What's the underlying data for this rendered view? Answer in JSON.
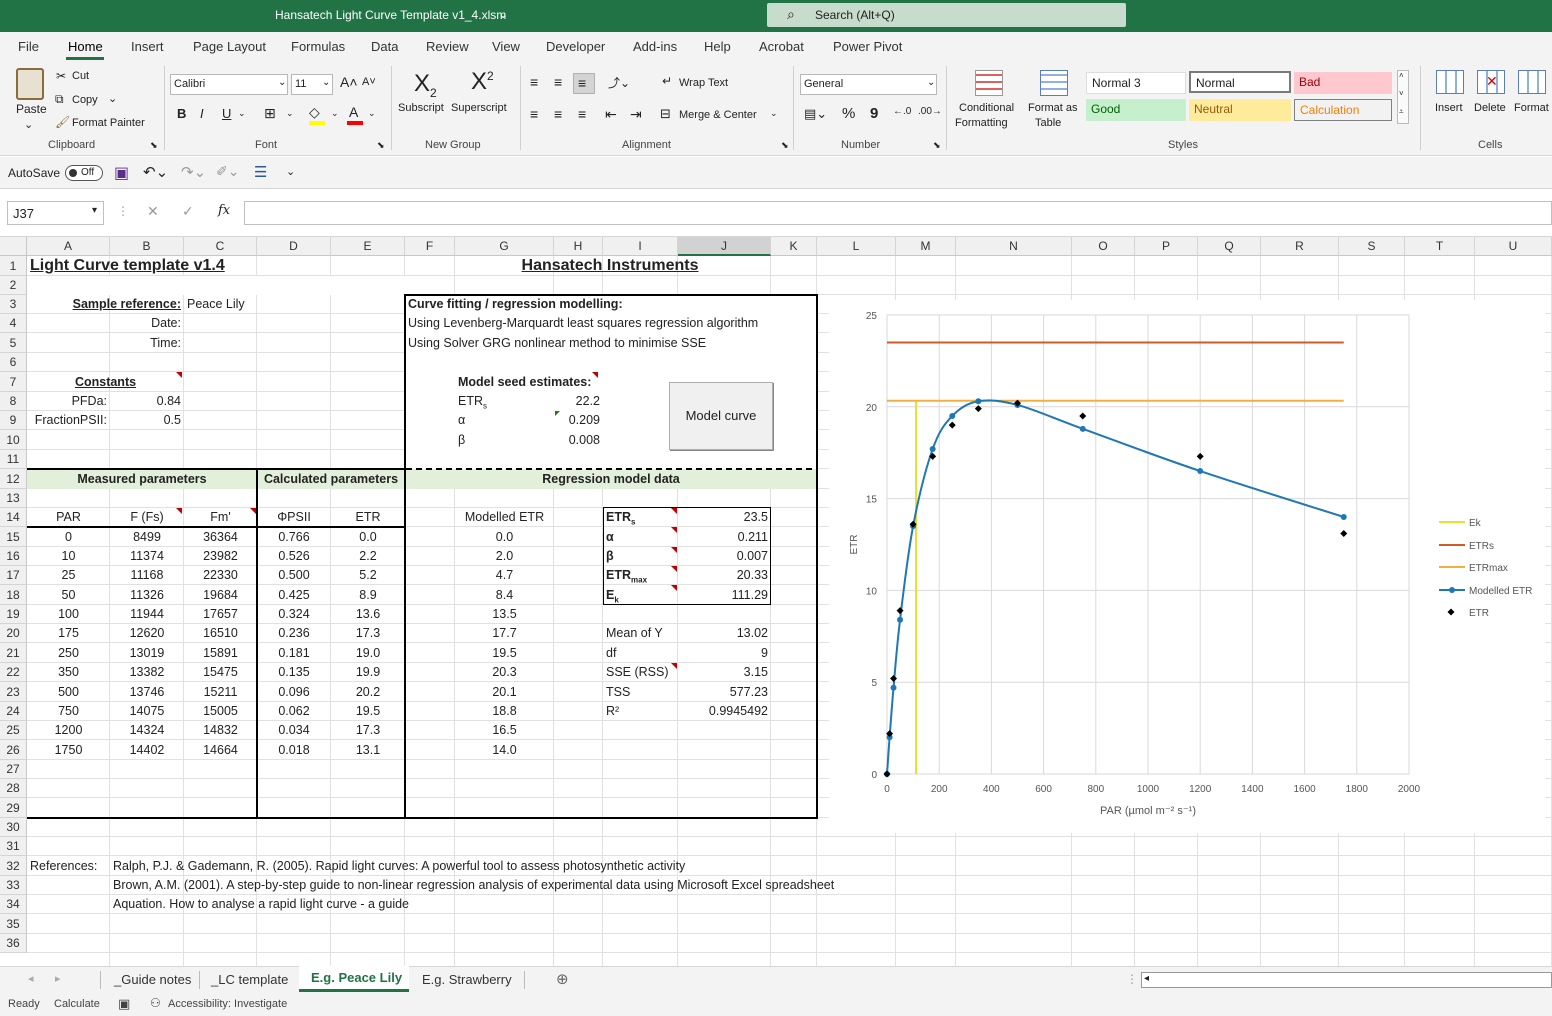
{
  "window": {
    "title": "Hansatech Light Curve Template v1_4.xlsm",
    "search_placeholder": "Search (Alt+Q)"
  },
  "menu": [
    "File",
    "Home",
    "Insert",
    "Page Layout",
    "Formulas",
    "Data",
    "Review",
    "View",
    "Developer",
    "Add-ins",
    "Help",
    "Acrobat",
    "Power Pivot"
  ],
  "ribbon": {
    "clipboard": {
      "paste": "Paste",
      "cut": "Cut",
      "copy": "Copy",
      "format_painter": "Format Painter",
      "label": "Clipboard"
    },
    "font": {
      "name": "Calibri",
      "size": "11",
      "bold": "B",
      "italic": "I",
      "underline": "U",
      "label": "Font",
      "fill_color": "#ffff00",
      "font_color": "#ff0000"
    },
    "new_group": {
      "subscript": "Subscript",
      "superscript": "Superscript",
      "label": "New Group"
    },
    "alignment": {
      "wrap": "Wrap Text",
      "merge": "Merge & Center",
      "label": "Alignment"
    },
    "number": {
      "format": "General",
      "percent": "%",
      "comma": "9",
      "label": "Number"
    },
    "styles": {
      "conditional": "Conditional",
      "conditional2": "Formatting",
      "format_table": "Format as",
      "format_table2": "Table",
      "normal3": "Normal 3",
      "normal": "Normal",
      "bad": "Bad",
      "good": "Good",
      "neutral": "Neutral",
      "calculation": "Calculation",
      "label": "Styles"
    },
    "cells": {
      "insert": "Insert",
      "delete": "Delete",
      "format": "Format",
      "label": "Cells"
    }
  },
  "qat": {
    "autosave": "AutoSave",
    "autosave_state": "Off"
  },
  "formula": {
    "name_box": "J37",
    "fx": "fx",
    "value": ""
  },
  "columns": [
    {
      "l": "A",
      "x": 27,
      "w": 83
    },
    {
      "l": "B",
      "x": 110,
      "w": 74
    },
    {
      "l": "C",
      "x": 184,
      "w": 73
    },
    {
      "l": "D",
      "x": 257,
      "w": 74
    },
    {
      "l": "E",
      "x": 331,
      "w": 74
    },
    {
      "l": "F",
      "x": 405,
      "w": 50
    },
    {
      "l": "G",
      "x": 455,
      "w": 99
    },
    {
      "l": "H",
      "x": 554,
      "w": 49
    },
    {
      "l": "I",
      "x": 603,
      "w": 75
    },
    {
      "l": "J",
      "x": 678,
      "w": 93
    },
    {
      "l": "K",
      "x": 771,
      "w": 46
    },
    {
      "l": "L",
      "x": 817,
      "w": 79
    },
    {
      "l": "M",
      "x": 896,
      "w": 60
    },
    {
      "l": "N",
      "x": 956,
      "w": 116
    },
    {
      "l": "O",
      "x": 1072,
      "w": 63
    },
    {
      "l": "P",
      "x": 1135,
      "w": 63
    },
    {
      "l": "Q",
      "x": 1198,
      "w": 63
    },
    {
      "l": "R",
      "x": 1261,
      "w": 78
    },
    {
      "l": "S",
      "x": 1339,
      "w": 66
    },
    {
      "l": "T",
      "x": 1405,
      "w": 70
    },
    {
      "l": "U",
      "x": 1475,
      "w": 77
    }
  ],
  "rows": [
    "1",
    "2",
    "3",
    "4",
    "5",
    "6",
    "7",
    "8",
    "9",
    "10",
    "11",
    "12",
    "13",
    "14",
    "15",
    "16",
    "17",
    "18",
    "19",
    "20",
    "21",
    "22",
    "23",
    "24",
    "25",
    "26",
    "27",
    "28",
    "29",
    "30",
    "31",
    "32",
    "33",
    "34",
    "35",
    "36"
  ],
  "sheet": {
    "title": "Light Curve template v1.4",
    "company": "Hansatech Instruments",
    "sample_ref_label": "Sample reference:",
    "sample_ref": "Peace Lily",
    "date_label": "Date:",
    "time_label": "Time:",
    "constants": "Constants",
    "pfda_label": "PFDa:",
    "pfda": "0.84",
    "fpsii_label": "FractionPSII:",
    "fpsii": "0.5",
    "curve_fit": "Curve fitting / regression modelling:",
    "curve_fit_1": "Using Levenberg-Marquardt least squares regression algorithm",
    "curve_fit_2": "Using Solver GRG nonlinear method to minimise SSE",
    "seed": "Model seed estimates:",
    "seed_etr_label": "ETR",
    "seed_etr_sub": "s",
    "seed_etr": "22.2",
    "seed_alpha_label": "α",
    "seed_alpha": "0.209",
    "seed_beta_label": "β",
    "seed_beta": "0.008",
    "model_button": "Model curve",
    "measured": "Measured parameters",
    "calculated": "Calculated parameters",
    "regression": "Regression model data",
    "h_par": "PAR",
    "h_fs": "F (Fs)",
    "h_fm": "Fm'",
    "h_phi": "ΦPSII",
    "h_etr": "ETR",
    "h_model": "Modelled ETR",
    "par": [
      "0",
      "10",
      "25",
      "50",
      "100",
      "175",
      "250",
      "350",
      "500",
      "750",
      "1200",
      "1750"
    ],
    "fs": [
      "8499",
      "11374",
      "11168",
      "11326",
      "11944",
      "12620",
      "13019",
      "13382",
      "13746",
      "14075",
      "14324",
      "14402"
    ],
    "fm": [
      "36364",
      "23982",
      "22330",
      "19684",
      "17657",
      "16510",
      "15891",
      "15475",
      "15211",
      "15005",
      "14832",
      "14664"
    ],
    "phi": [
      "0.766",
      "0.526",
      "0.500",
      "0.425",
      "0.324",
      "0.236",
      "0.181",
      "0.135",
      "0.096",
      "0.062",
      "0.034",
      "0.018"
    ],
    "etr": [
      "0.0",
      "2.2",
      "5.2",
      "8.9",
      "13.6",
      "17.3",
      "19.0",
      "19.9",
      "20.2",
      "19.5",
      "17.3",
      "13.1"
    ],
    "model": [
      "0.0",
      "2.0",
      "4.7",
      "8.4",
      "13.5",
      "17.7",
      "19.5",
      "20.3",
      "20.1",
      "18.8",
      "16.5",
      "14.0"
    ],
    "res": [
      {
        "label": "ETR",
        "sub": "s",
        "value": "23.5"
      },
      {
        "label": "α",
        "sub": "",
        "value": "0.211"
      },
      {
        "label": "β",
        "sub": "",
        "value": "0.007"
      },
      {
        "label": "ETR",
        "sub": "max",
        "value": "20.33"
      },
      {
        "label": "E",
        "sub": "k",
        "value": "111.29"
      }
    ],
    "stats": [
      {
        "label": "Mean of Y",
        "value": "13.02"
      },
      {
        "label": "df",
        "value": "9"
      },
      {
        "label": "SSE (RSS)",
        "value": "3.15"
      },
      {
        "label": "TSS",
        "value": "577.23"
      },
      {
        "label": "R²",
        "value": "0.9945492"
      }
    ],
    "ref_label": "References:",
    "ref1": "Ralph, P.J. & Gademann, R. (2005). Rapid light curves: A powerful tool to assess photosynthetic activity",
    "ref2": "Brown, A.M. (2001). A step-by-step guide to non-linear regression analysis of experimental data using Microsoft Excel spreadsheet",
    "ref3": "Aquation. How to analyse a rapid light curve - a guide"
  },
  "chart_data": {
    "type": "line",
    "ylabel": "ETR",
    "xlabel": "PAR (µmol m⁻² s⁻¹)",
    "xlim": [
      0,
      2000
    ],
    "ylim": [
      0,
      25
    ],
    "xticks": [
      "0",
      "200",
      "400",
      "600",
      "800",
      "1000",
      "1200",
      "1400",
      "1600",
      "1800",
      "2000"
    ],
    "yticks": [
      "0",
      "5",
      "10",
      "15",
      "20",
      "25"
    ],
    "grid": true,
    "legend": "right",
    "series": [
      {
        "name": "Ek",
        "color": "#e8e02a",
        "x": [
          111.29,
          111.29
        ],
        "y": [
          0,
          20.33
        ]
      },
      {
        "name": "ETRs",
        "color": "#d35a24",
        "x": [
          0,
          1750
        ],
        "y": [
          23.5,
          23.5
        ]
      },
      {
        "name": "ETRmax",
        "color": "#f0b040",
        "x": [
          0,
          1750
        ],
        "y": [
          20.33,
          20.33
        ]
      },
      {
        "name": "Modelled ETR",
        "color": "#1f77b4",
        "x": [
          0,
          10,
          25,
          50,
          100,
          175,
          250,
          350,
          500,
          750,
          1200,
          1750
        ],
        "y": [
          0,
          2.0,
          4.7,
          8.4,
          13.5,
          17.7,
          19.5,
          20.3,
          20.1,
          18.8,
          16.5,
          14.0
        ]
      },
      {
        "name": "ETR",
        "color": "#000000",
        "x": [
          0,
          10,
          25,
          50,
          100,
          175,
          250,
          350,
          500,
          750,
          1200,
          1750
        ],
        "y": [
          0,
          2.2,
          5.2,
          8.9,
          13.6,
          17.3,
          19.0,
          19.9,
          20.2,
          19.5,
          17.3,
          13.1
        ]
      }
    ]
  },
  "tabs": [
    "_Guide notes",
    "_LC template",
    "E.g. Peace Lily",
    "E.g. Strawberry"
  ],
  "status": {
    "ready": "Ready",
    "calculate": "Calculate",
    "accessibility": "Accessibility: Investigate"
  }
}
